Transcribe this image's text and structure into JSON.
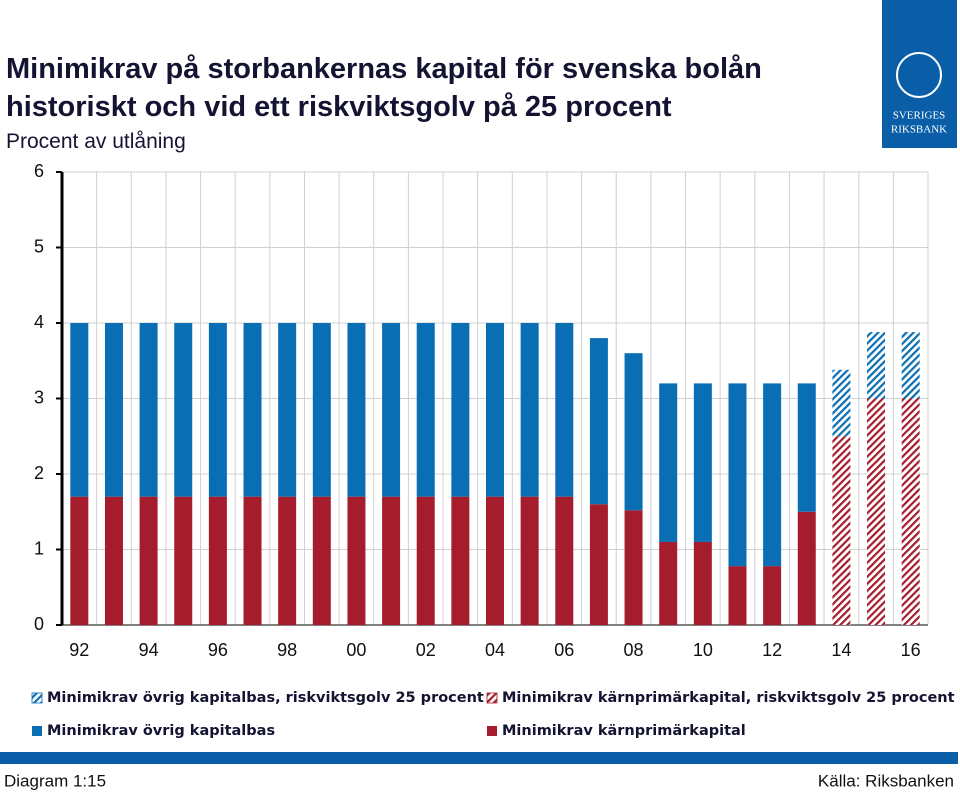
{
  "chart_data": {
    "type": "bar",
    "title": "Minimikrav på storbankernas kapital för svenska bolån historiskt och vid ett riskviktsgolv på 25 procent",
    "title_lines": [
      "Minimikrav på storbankernas kapital för svenska bolån",
      "historiskt och vid ett riskviktsgolv på 25 procent"
    ],
    "subtitle": "Procent av utlåning",
    "categories": [
      "92",
      null,
      "94",
      null,
      "96",
      null,
      "98",
      null,
      "00",
      null,
      "02",
      null,
      "04",
      null,
      "06",
      null,
      "08",
      null,
      "10",
      null,
      "12",
      null,
      "14",
      null,
      "16"
    ],
    "series": [
      {
        "name": "Minimikrav övrig kapitalbas, riskviktsgolv 25 procent",
        "color": "#0a6eb4",
        "hatch": true,
        "values": [
          null,
          null,
          null,
          null,
          null,
          null,
          null,
          null,
          null,
          null,
          null,
          null,
          null,
          null,
          null,
          null,
          null,
          null,
          null,
          null,
          null,
          null,
          0.88,
          0.88,
          0.88
        ]
      },
      {
        "name": "Minimikrav kärnprimärkapital, riskviktsgolv 25 procent",
        "color": "#a51d2d",
        "hatch": true,
        "values": [
          null,
          null,
          null,
          null,
          null,
          null,
          null,
          null,
          null,
          null,
          null,
          null,
          null,
          null,
          null,
          null,
          null,
          null,
          null,
          null,
          null,
          null,
          2.5,
          3.0,
          3.0
        ]
      },
      {
        "name": "Minimikrav övrig kapitalbas",
        "color": "#0a6eb4",
        "hatch": false,
        "values": [
          2.3,
          2.3,
          2.3,
          2.3,
          2.3,
          2.3,
          2.3,
          2.3,
          2.3,
          2.3,
          2.3,
          2.3,
          2.3,
          2.3,
          2.3,
          2.2,
          2.08,
          2.1,
          2.1,
          2.42,
          2.42,
          1.7,
          null,
          null,
          null
        ]
      },
      {
        "name": "Minimikrav kärnprimärkapital",
        "color": "#a51d2d",
        "hatch": false,
        "values": [
          1.7,
          1.7,
          1.7,
          1.7,
          1.7,
          1.7,
          1.7,
          1.7,
          1.7,
          1.7,
          1.7,
          1.7,
          1.7,
          1.7,
          1.7,
          1.6,
          1.52,
          1.1,
          1.1,
          0.78,
          0.78,
          1.5,
          null,
          null,
          null
        ]
      }
    ],
    "ylim": [
      0,
      6
    ],
    "yticks": [
      0,
      1,
      2,
      3,
      4,
      5,
      6
    ],
    "grid": true,
    "diagram_label": "Diagram 1:15",
    "source": "Källa: Riksbanken",
    "logo": [
      "SVERIGES",
      "RIKSBANK"
    ]
  }
}
